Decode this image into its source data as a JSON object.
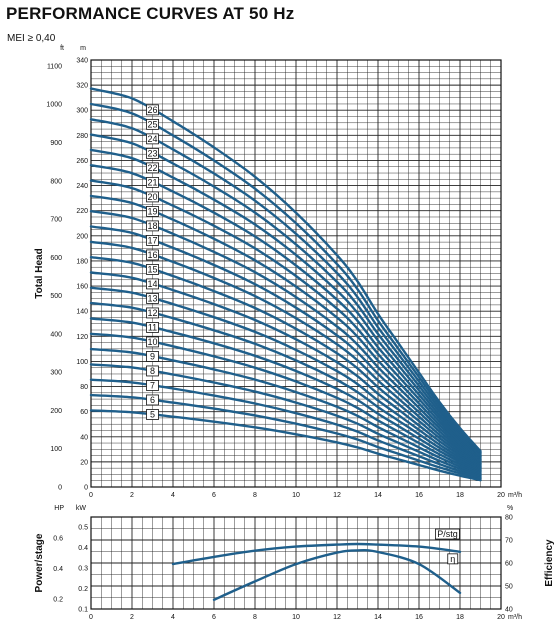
{
  "header": {
    "title": "PERFORMANCE CURVES AT 50 Hz",
    "subtitle": "MEI ≥ 0,40"
  },
  "chart_data": [
    {
      "type": "line",
      "xlabel": "m³/h",
      "ylabel": "Total Head",
      "y_unit_left": "ft",
      "y_unit_right": "m",
      "xlim": [
        0,
        20
      ],
      "ylim": [
        0,
        340
      ],
      "x_ticks": [
        0,
        2,
        4,
        6,
        8,
        10,
        12,
        14,
        16,
        18,
        20
      ],
      "y_ticks_m": [
        0,
        20,
        40,
        60,
        80,
        100,
        120,
        140,
        160,
        180,
        200,
        220,
        240,
        260,
        280,
        300,
        320,
        340
      ],
      "y_ticks_ft": [
        0,
        100,
        200,
        300,
        400,
        500,
        600,
        700,
        800,
        900,
        1000,
        1100
      ],
      "grid": true,
      "stage_labels": [
        "5",
        "6",
        "7",
        "8",
        "9",
        "10",
        "11",
        "12",
        "13",
        "14",
        "15",
        "16",
        "17",
        "18",
        "19",
        "20",
        "21",
        "22",
        "23",
        "24",
        "25",
        "26"
      ],
      "series_model": {
        "description_note": "",
        "x_points": [
          0,
          2,
          4,
          6,
          8,
          10,
          12,
          13,
          14,
          15,
          16,
          17,
          18,
          19
        ],
        "head_per_stage_m": [
          12.2,
          11.9,
          11.2,
          10.4,
          9.5,
          8.4,
          7.1,
          6.3,
          5.3,
          4.4,
          3.5,
          2.6,
          1.8,
          1.1
        ]
      }
    },
    {
      "type": "line",
      "xlabel": "m³/h",
      "ylabel_left": "Power/stage",
      "ylabel_right": "Efficiency",
      "unit_left_hp": "HP",
      "unit_left_kw": "kW",
      "unit_right": "%",
      "xlim": [
        0,
        20
      ],
      "x_ticks": [
        0,
        2,
        4,
        6,
        8,
        10,
        12,
        14,
        16,
        18,
        20
      ],
      "kw_ticks": [
        0.1,
        0.2,
        0.3,
        0.4,
        0.5
      ],
      "hp_ticks": [
        0.2,
        0.4,
        0.6
      ],
      "pct_ticks": [
        40,
        50,
        60,
        70,
        80
      ],
      "ylim_kw": [
        0.1,
        0.55
      ],
      "ylim_pct": [
        40,
        80
      ],
      "series": [
        {
          "name": "P/stg",
          "axis": "kW",
          "x": [
            4,
            6,
            8,
            10,
            12,
            13,
            14,
            16,
            18
          ],
          "values": [
            0.32,
            0.355,
            0.385,
            0.405,
            0.415,
            0.418,
            0.415,
            0.405,
            0.38
          ]
        },
        {
          "name": "η",
          "axis": "%",
          "x": [
            6,
            8,
            10,
            12,
            13,
            14,
            16,
            18
          ],
          "values": [
            44,
            52,
            59.5,
            64.5,
            65.5,
            64.8,
            59.5,
            47
          ]
        }
      ]
    }
  ]
}
